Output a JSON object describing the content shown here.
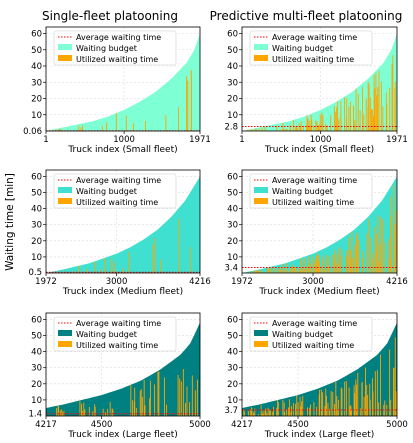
{
  "column_titles": [
    "Single-fleet platooning",
    "Predictive multi-fleet platooning"
  ],
  "shared_ylabel": "Waiting time [min]",
  "colors": {
    "small": "#7FFFD4",
    "medium": "#40E0D0",
    "large": "#008080",
    "utilized": "#FFA500",
    "average": "#FF0000"
  },
  "chart_data": [
    {
      "type": "area",
      "fleet": "small",
      "title": "Single-fleet platooning",
      "xlabel": "Truck index (Small fleet)",
      "x_range": [
        1,
        1971
      ],
      "x_ticks": [
        1,
        1000,
        1971
      ],
      "ylim": [
        0,
        64
      ],
      "y_ticks": [
        10,
        20,
        30,
        40,
        50,
        60
      ],
      "budget_curve": {
        "x": [
          1,
          200,
          400,
          600,
          800,
          1000,
          1200,
          1400,
          1600,
          1800,
          1900,
          1971
        ],
        "y": [
          0,
          2,
          4,
          6,
          9,
          13,
          18,
          24,
          32,
          42,
          50,
          60
        ]
      },
      "utilized_sparsity": 0.95,
      "average_waiting_time": 0.06,
      "average_label": "0.06",
      "legend": [
        "Average waiting time",
        "Waiting budget",
        "Utilized waiting time"
      ]
    },
    {
      "type": "area",
      "fleet": "small",
      "title": "Predictive multi-fleet platooning",
      "xlabel": "Truck index (Small fleet)",
      "x_range": [
        1,
        1971
      ],
      "x_ticks": [
        1,
        1000,
        1971
      ],
      "ylim": [
        0,
        64
      ],
      "y_ticks": [
        10,
        20,
        30,
        40,
        50,
        60
      ],
      "budget_curve": {
        "x": [
          1,
          200,
          400,
          600,
          800,
          1000,
          1200,
          1400,
          1600,
          1800,
          1900,
          1971
        ],
        "y": [
          0,
          2,
          4,
          6,
          9,
          13,
          18,
          24,
          32,
          42,
          50,
          60
        ]
      },
      "utilized_sparsity": 0.35,
      "average_waiting_time": 2.8,
      "average_label": "2.8",
      "legend": [
        "Average waiting time",
        "Waiting budget",
        "Utilized waiting time"
      ]
    },
    {
      "type": "area",
      "fleet": "medium",
      "title": "",
      "xlabel": "Truck index (Medium fleet)",
      "x_range": [
        1972,
        4216
      ],
      "x_ticks": [
        1972,
        3000,
        4216
      ],
      "ylim": [
        0,
        64
      ],
      "y_ticks": [
        10,
        20,
        30,
        40,
        50,
        60
      ],
      "budget_curve": {
        "x": [
          1972,
          2200,
          2400,
          2600,
          2800,
          3000,
          3200,
          3400,
          3600,
          3800,
          4000,
          4216
        ],
        "y": [
          0,
          2,
          4,
          6,
          9,
          12,
          16,
          21,
          27,
          35,
          45,
          60
        ]
      },
      "utilized_sparsity": 0.93,
      "average_waiting_time": 0.5,
      "average_label": "0.5",
      "legend": [
        "Average waiting time",
        "Waiting budget",
        "Utilized waiting time"
      ]
    },
    {
      "type": "area",
      "fleet": "medium",
      "title": "",
      "xlabel": "Truck index (Medium fleet)",
      "x_range": [
        1972,
        4216
      ],
      "x_ticks": [
        1972,
        3000,
        4216
      ],
      "ylim": [
        0,
        64
      ],
      "y_ticks": [
        10,
        20,
        30,
        40,
        50,
        60
      ],
      "budget_curve": {
        "x": [
          1972,
          2200,
          2400,
          2600,
          2800,
          3000,
          3200,
          3400,
          3600,
          3800,
          4000,
          4216
        ],
        "y": [
          0,
          2,
          4,
          6,
          9,
          12,
          16,
          21,
          27,
          35,
          45,
          60
        ]
      },
      "utilized_sparsity": 0.35,
      "average_waiting_time": 3.4,
      "average_label": "3.4",
      "legend": [
        "Average waiting time",
        "Waiting budget",
        "Utilized waiting time"
      ]
    },
    {
      "type": "area",
      "fleet": "large",
      "title": "",
      "xlabel": "Truck index (Large fleet)",
      "x_range": [
        4217,
        5000
      ],
      "x_ticks": [
        4217,
        4500,
        5000
      ],
      "ylim": [
        0,
        64
      ],
      "y_ticks": [
        10,
        20,
        30,
        40,
        50,
        60
      ],
      "budget_curve": {
        "x": [
          4217,
          4300,
          4400,
          4500,
          4600,
          4700,
          4800,
          4900,
          4950,
          5000
        ],
        "y": [
          5,
          7,
          10,
          13,
          17,
          22,
          29,
          38,
          45,
          58
        ]
      },
      "utilized_sparsity": 0.7,
      "average_waiting_time": 1.4,
      "average_label": "1.4",
      "legend": [
        "Average waiting time",
        "Waiting budget",
        "Utilized waiting time"
      ]
    },
    {
      "type": "area",
      "fleet": "large",
      "title": "",
      "xlabel": "Truck index (Large fleet)",
      "x_range": [
        4217,
        5000
      ],
      "x_ticks": [
        4217,
        4500,
        5000
      ],
      "ylim": [
        0,
        64
      ],
      "y_ticks": [
        10,
        20,
        30,
        40,
        50,
        60
      ],
      "budget_curve": {
        "x": [
          4217,
          4300,
          4400,
          4500,
          4600,
          4700,
          4800,
          4900,
          4950,
          5000
        ],
        "y": [
          5,
          7,
          10,
          13,
          17,
          22,
          29,
          38,
          45,
          58
        ]
      },
      "utilized_sparsity": 0.35,
      "average_waiting_time": 3.7,
      "average_label": "3.7",
      "legend": [
        "Average waiting time",
        "Waiting budget",
        "Utilized waiting time"
      ]
    }
  ]
}
